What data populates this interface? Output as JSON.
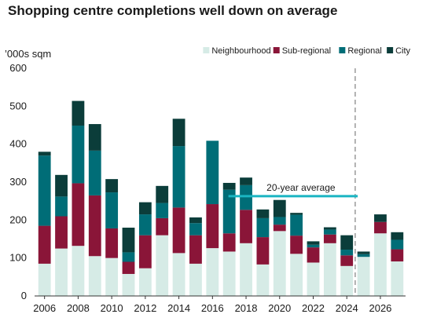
{
  "chart_data": {
    "type": "bar",
    "stacked": true,
    "title": "Shopping centre completions well down on average",
    "ylabel": "’000s sqm",
    "xlabel": "",
    "ylim": [
      0,
      600
    ],
    "yticks": [
      "0",
      "100",
      "200",
      "300",
      "400",
      "500",
      "600"
    ],
    "categories": [
      "2006",
      "2007",
      "2008",
      "2009",
      "2010",
      "2011",
      "2012",
      "2013",
      "2014",
      "2015",
      "2016",
      "2017",
      "2018",
      "2019",
      "2020",
      "2021",
      "2022",
      "2023",
      "2024",
      "2025",
      "2026",
      "2027"
    ],
    "xtick_labels": [
      "2006",
      "2008",
      "2010",
      "2012",
      "2014",
      "2016",
      "2018",
      "2020",
      "2022",
      "2024",
      "2026"
    ],
    "series": [
      {
        "name": "Neighbourhood",
        "color": "#d6ebe6",
        "values": [
          85,
          125,
          132,
          105,
          100,
          58,
          73,
          160,
          113,
          85,
          126,
          117,
          139,
          83,
          171,
          111,
          88,
          139,
          79,
          103,
          165,
          91
        ]
      },
      {
        "name": "Sub-regional",
        "color": "#8a1538",
        "values": [
          100,
          85,
          165,
          160,
          78,
          32,
          87,
          45,
          120,
          75,
          116,
          48,
          88,
          72,
          17,
          48,
          40,
          23,
          28,
          0,
          30,
          32
        ]
      },
      {
        "name": "Regional",
        "color": "#006d77",
        "values": [
          185,
          52,
          152,
          118,
          95,
          25,
          55,
          40,
          162,
          32,
          167,
          115,
          65,
          50,
          20,
          55,
          7,
          13,
          15,
          7,
          0,
          25
        ]
      },
      {
        "name": "City",
        "color": "#0b3d3a",
        "values": [
          10,
          57,
          65,
          70,
          35,
          65,
          32,
          45,
          72,
          15,
          0,
          18,
          20,
          23,
          45,
          5,
          9,
          6,
          38,
          7,
          20,
          20
        ]
      }
    ],
    "average_line": {
      "label": "20-year average",
      "value": 263,
      "from": "2017",
      "to": "2025",
      "color": "#1ab5c2"
    },
    "forecast_divider": {
      "at": "2024",
      "style": "dashed",
      "color": "#9a9a9a"
    },
    "legend": {
      "placement": "top-right"
    },
    "grid": false
  }
}
